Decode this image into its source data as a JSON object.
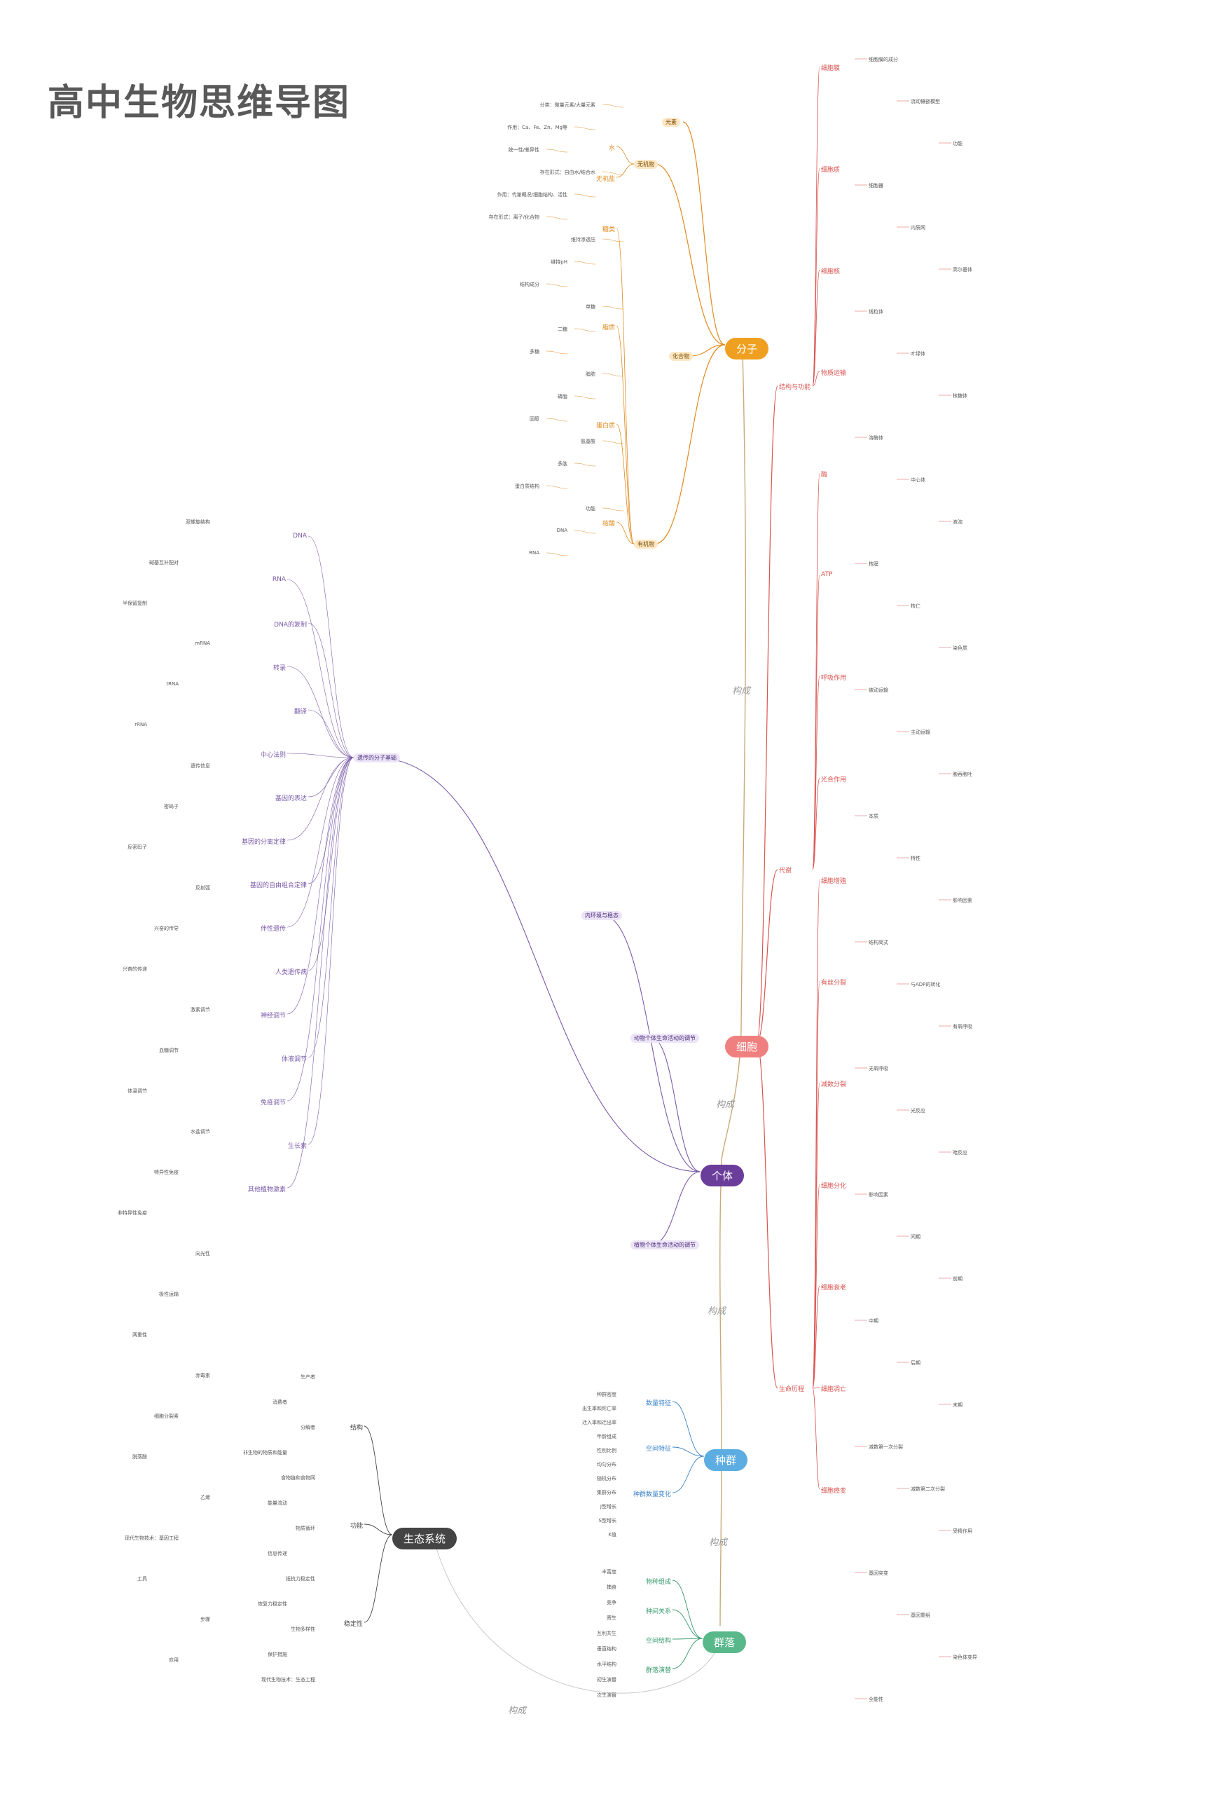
{
  "title": "高中生物思维导图",
  "link_label": "构成",
  "colors": {
    "molecule": "#f0a020",
    "cell": "#f08080",
    "individual": "#6a3d9a",
    "population": "#5dade2",
    "community": "#58b88a",
    "ecosystem": "#444444",
    "red_branch": "#d9534f",
    "green_branch": "#3a9b6f",
    "orange_branch": "#e08a1e",
    "blue_branch": "#3a83c9",
    "purple_branch": "#7a5ba8",
    "dark_branch": "#444444"
  },
  "hubs": [
    {
      "key": "molecule",
      "label": "分子"
    },
    {
      "key": "cell",
      "label": "细胞"
    },
    {
      "key": "individual",
      "label": "个体"
    },
    {
      "key": "population",
      "label": "种群"
    },
    {
      "key": "community",
      "label": "群落"
    },
    {
      "key": "ecosystem",
      "label": "生态系统"
    }
  ],
  "molecule": {
    "branches_left": [
      "元素",
      "无机物",
      "化合物",
      "有机物"
    ],
    "inorganic": [
      "水",
      "无机盐"
    ],
    "organic": [
      "糖类",
      "脂质",
      "蛋白质",
      "核酸"
    ],
    "details": [
      "分类：微量元素/大量元素",
      "作用：Ca、Fe、Zn、Mg等",
      "统一性/差异性",
      "存在形式：自由水/结合水",
      "作用：代谢概况/细胞结构、活性",
      "存在形式：离子/化合物",
      "维持渗透压",
      "维持pH",
      "结构成分",
      "单糖",
      "二糖",
      "多糖",
      "脂肪",
      "磷脂",
      "固醇",
      "氨基酸",
      "多肽",
      "蛋白质结构",
      "功能",
      "DNA",
      "RNA"
    ]
  },
  "cell": {
    "branches_right": [
      "结构与功能",
      "代谢",
      "生命历程"
    ],
    "sub": [
      "细胞膜",
      "细胞质",
      "细胞核",
      "物质运输",
      "酶",
      "ATP",
      "呼吸作用",
      "光合作用",
      "细胞增殖",
      "有丝分裂",
      "减数分裂",
      "细胞分化",
      "细胞衰老",
      "细胞凋亡",
      "细胞癌变"
    ],
    "details": [
      "细胞膜的成分",
      "流动镶嵌模型",
      "功能",
      "细胞器",
      "内质网",
      "高尔基体",
      "线粒体",
      "叶绿体",
      "核糖体",
      "溶酶体",
      "中心体",
      "液泡",
      "核膜",
      "核仁",
      "染色质",
      "被动运输",
      "主动运输",
      "胞吞胞吐",
      "本质",
      "特性",
      "影响因素",
      "结构简式",
      "与ADP的转化",
      "有氧呼吸",
      "无氧呼吸",
      "光反应",
      "暗反应",
      "影响因素",
      "间期",
      "前期",
      "中期",
      "后期",
      "末期",
      "减数第一次分裂",
      "减数第二次分裂",
      "受精作用",
      "基因突变",
      "基因重组",
      "染色体变异",
      "全能性"
    ]
  },
  "individual": {
    "branches_left": [
      "遗传的分子基础",
      "内环境与稳态",
      "动物个体生命活动的调节",
      "植物个体生命活动的调节"
    ],
    "sub": [
      "DNA",
      "RNA",
      "DNA的复制",
      "转录",
      "翻译",
      "中心法则",
      "基因的表达",
      "基因的分离定律",
      "基因的自由组合定律",
      "伴性遗传",
      "人类遗传病",
      "神经调节",
      "体液调节",
      "免疫调节",
      "生长素",
      "其他植物激素"
    ],
    "details": [
      "双螺旋结构",
      "碱基互补配对",
      "半保留复制",
      "mRNA",
      "tRNA",
      "rRNA",
      "遗传信息",
      "密码子",
      "反密码子",
      "反射弧",
      "兴奋的传导",
      "兴奋的传递",
      "激素调节",
      "血糖调节",
      "体温调节",
      "水盐调节",
      "特异性免疫",
      "非特异性免疫",
      "向光性",
      "极性运输",
      "两重性",
      "赤霉素",
      "细胞分裂素",
      "脱落酸",
      "乙烯",
      "现代生物技术：基因工程",
      "工具",
      "步骤",
      "应用"
    ]
  },
  "population": {
    "sub": [
      "数量特征",
      "空间特征",
      "种群数量变化"
    ],
    "details": [
      "种群密度",
      "出生率和死亡率",
      "迁入率和迁出率",
      "年龄组成",
      "性别比例",
      "均匀分布",
      "随机分布",
      "集群分布",
      "J型增长",
      "S型增长",
      "K值"
    ]
  },
  "community": {
    "sub": [
      "物种组成",
      "种间关系",
      "空间结构",
      "群落演替"
    ],
    "details": [
      "丰富度",
      "捕食",
      "竞争",
      "寄生",
      "互利共生",
      "垂直结构",
      "水平结构",
      "初生演替",
      "次生演替"
    ]
  },
  "ecosystem": {
    "sub": [
      "结构",
      "功能",
      "稳定性"
    ],
    "details": [
      "生产者",
      "消费者",
      "分解者",
      "非生物的物质和能量",
      "食物链和食物网",
      "能量流动",
      "物质循环",
      "信息传递",
      "抵抗力稳定性",
      "恢复力稳定性",
      "生物多样性",
      "保护措施",
      "现代生物技术：生态工程"
    ]
  }
}
